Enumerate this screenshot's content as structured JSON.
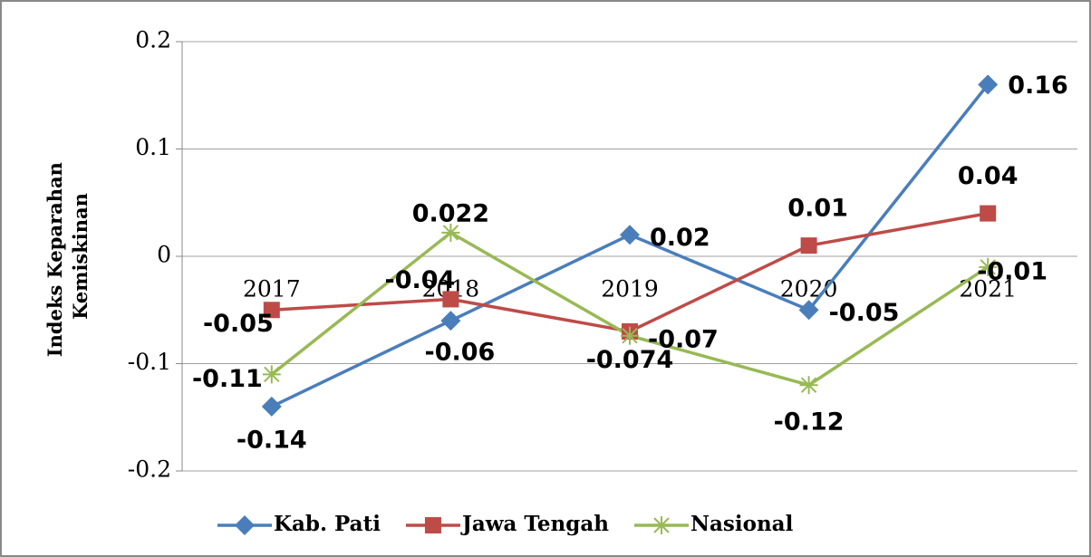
{
  "chart_data": {
    "type": "line",
    "y_label": [
      "Indeks Keparahan",
      "Kemiskinan"
    ],
    "categories": [
      "2017",
      "2018",
      "2019",
      "2020",
      "2021"
    ],
    "series": [
      {
        "name": "Kab. Pati",
        "color": "#4a7ebb",
        "marker": "diamond",
        "values": [
          -0.14,
          -0.06,
          0.02,
          -0.05,
          0.16
        ]
      },
      {
        "name": "Jawa Tengah",
        "color": "#be4b48",
        "marker": "square",
        "values": [
          -0.05,
          -0.04,
          -0.07,
          0.01,
          0.04
        ]
      },
      {
        "name": "Nasional",
        "color": "#98b954",
        "marker": "star",
        "values": [
          -0.11,
          0.022,
          -0.074,
          -0.12,
          -0.01
        ]
      }
    ],
    "ylim": [
      -0.2,
      0.2
    ],
    "yticks": [
      -0.2,
      -0.1,
      0,
      0.1,
      0.2
    ],
    "grid": true,
    "legend": "bottom"
  }
}
